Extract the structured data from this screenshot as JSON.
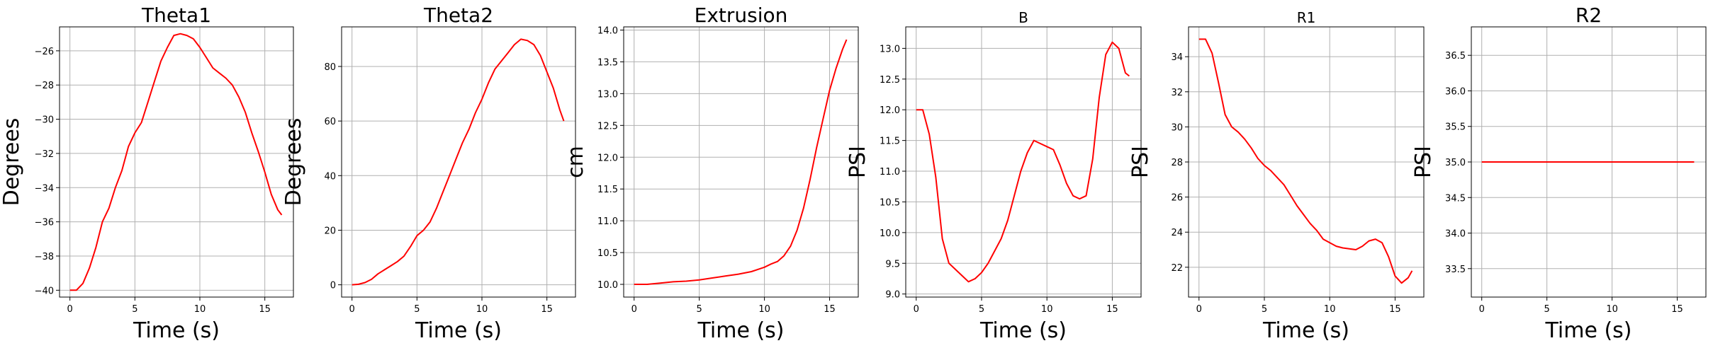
{
  "chart_data": [
    {
      "type": "line",
      "title": "Theta1",
      "xlabel": "Time (s)",
      "ylabel": "Degrees",
      "xlim": [
        -0.8,
        17.2
      ],
      "ylim": [
        -40.4,
        -24.6
      ],
      "xticks": [
        0,
        5,
        10,
        15
      ],
      "yticks": [
        -40,
        -38,
        -36,
        -34,
        -32,
        -30,
        -28,
        -26
      ],
      "grid": true,
      "color": "#ff0000",
      "x": [
        0,
        0.5,
        1,
        1.5,
        2,
        2.5,
        3,
        3.5,
        4,
        4.5,
        5,
        5.5,
        6,
        6.5,
        7,
        7.5,
        8,
        8.5,
        9,
        9.5,
        10,
        10.5,
        11,
        11.5,
        12,
        12.5,
        13,
        13.5,
        14,
        14.5,
        15,
        15.5,
        16,
        16.3
      ],
      "y": [
        -40,
        -40,
        -39.6,
        -38.7,
        -37.5,
        -36,
        -35.2,
        -34,
        -33,
        -31.6,
        -30.8,
        -30.2,
        -29,
        -27.8,
        -26.6,
        -25.8,
        -25.1,
        -25,
        -25.1,
        -25.3,
        -25.8,
        -26.4,
        -27,
        -27.3,
        -27.6,
        -28,
        -28.7,
        -29.6,
        -30.8,
        -31.9,
        -33.1,
        -34.4,
        -35.3,
        -35.6
      ]
    },
    {
      "type": "line",
      "title": "Theta2",
      "xlabel": "Time (s)",
      "ylabel": "Degrees",
      "xlim": [
        -0.8,
        17.2
      ],
      "ylim": [
        -4.5,
        94.5
      ],
      "xticks": [
        0,
        5,
        10,
        15
      ],
      "yticks": [
        0,
        20,
        40,
        60,
        80
      ],
      "grid": true,
      "color": "#ff0000",
      "x": [
        0,
        0.5,
        1,
        1.5,
        2,
        2.5,
        3,
        3.5,
        4,
        4.5,
        5,
        5.5,
        6,
        6.5,
        7,
        7.5,
        8,
        8.5,
        9,
        9.5,
        10,
        10.5,
        11,
        11.5,
        12,
        12.5,
        13,
        13.5,
        14,
        14.5,
        15,
        15.5,
        16,
        16.3
      ],
      "y": [
        0,
        0.2,
        0.8,
        2,
        4,
        5.5,
        7,
        8.5,
        10.5,
        14,
        18,
        20,
        23,
        28,
        34,
        40,
        46,
        52,
        57,
        63,
        68,
        74,
        79,
        82,
        85,
        88,
        90,
        89.5,
        88,
        84,
        78,
        72,
        64,
        60
      ]
    },
    {
      "type": "line",
      "title": "Extrusion",
      "xlabel": "Time (s)",
      "ylabel": "cm",
      "xlim": [
        -0.8,
        17.2
      ],
      "ylim": [
        9.8,
        14.05
      ],
      "xticks": [
        0,
        5,
        10,
        15
      ],
      "yticks": [
        10.0,
        10.5,
        11.0,
        11.5,
        12.0,
        12.5,
        13.0,
        13.5,
        14.0
      ],
      "grid": true,
      "color": "#ff0000",
      "x": [
        0,
        1,
        2,
        3,
        4,
        5,
        6,
        7,
        8,
        9,
        10,
        10.5,
        11,
        11.5,
        12,
        12.5,
        13,
        13.5,
        14,
        14.5,
        15,
        15.5,
        16,
        16.3
      ],
      "y": [
        10,
        10,
        10.02,
        10.04,
        10.05,
        10.07,
        10.1,
        10.13,
        10.16,
        10.2,
        10.27,
        10.32,
        10.36,
        10.45,
        10.6,
        10.85,
        11.2,
        11.65,
        12.15,
        12.6,
        13.05,
        13.4,
        13.7,
        13.85
      ]
    },
    {
      "type": "line",
      "title": "B",
      "xlabel": "Time (s)",
      "ylabel": "PSI",
      "xlim": [
        -0.8,
        17.2
      ],
      "ylim": [
        8.95,
        13.35
      ],
      "xticks": [
        0,
        5,
        10,
        15
      ],
      "yticks": [
        9.0,
        9.5,
        10.0,
        10.5,
        11.0,
        11.5,
        12.0,
        12.5,
        13.0
      ],
      "grid": true,
      "color": "#ff0000",
      "x": [
        0,
        0.5,
        1,
        1.5,
        2,
        2.5,
        3,
        3.5,
        4,
        4.5,
        5,
        5.5,
        6,
        6.5,
        7,
        7.5,
        8,
        8.5,
        9,
        9.5,
        10,
        10.5,
        11,
        11.5,
        12,
        12.5,
        13,
        13.5,
        14,
        14.5,
        15,
        15.5,
        16,
        16.3
      ],
      "y": [
        12,
        12,
        11.6,
        10.9,
        9.9,
        9.5,
        9.4,
        9.3,
        9.2,
        9.25,
        9.35,
        9.5,
        9.7,
        9.9,
        10.2,
        10.6,
        11,
        11.3,
        11.5,
        11.45,
        11.4,
        11.35,
        11.1,
        10.8,
        10.6,
        10.55,
        10.6,
        11.2,
        12.2,
        12.9,
        13.1,
        13,
        12.6,
        12.55
      ]
    },
    {
      "type": "line",
      "title": "R1",
      "xlabel": "Time (s)",
      "ylabel": "PSI",
      "xlim": [
        -0.8,
        17.2
      ],
      "ylim": [
        20.3,
        35.7
      ],
      "xticks": [
        0,
        5,
        10,
        15
      ],
      "yticks": [
        22,
        24,
        26,
        28,
        30,
        32,
        34
      ],
      "grid": true,
      "color": "#ff0000",
      "x": [
        0,
        0.5,
        1,
        1.5,
        2,
        2.5,
        3,
        3.5,
        4,
        4.5,
        5,
        5.5,
        6,
        6.5,
        7,
        7.5,
        8,
        8.5,
        9,
        9.5,
        10,
        10.5,
        11,
        11.5,
        12,
        12.5,
        13,
        13.5,
        14,
        14.5,
        15,
        15.5,
        16,
        16.3
      ],
      "y": [
        35,
        35,
        34.2,
        32.5,
        30.7,
        30,
        29.7,
        29.3,
        28.8,
        28.2,
        27.8,
        27.5,
        27.1,
        26.7,
        26.1,
        25.5,
        25,
        24.5,
        24.1,
        23.6,
        23.4,
        23.2,
        23.1,
        23.05,
        23,
        23.2,
        23.5,
        23.6,
        23.4,
        22.6,
        21.5,
        21.1,
        21.4,
        21.8
      ]
    },
    {
      "type": "line",
      "title": "R2",
      "xlabel": "Time (s)",
      "ylabel": "PSI",
      "xlim": [
        -0.8,
        17.2
      ],
      "ylim": [
        33.1,
        36.9
      ],
      "xticks": [
        0,
        5,
        10,
        15
      ],
      "yticks": [
        33.5,
        34.0,
        34.5,
        35.0,
        35.5,
        36.0,
        36.5
      ],
      "grid": true,
      "color": "#ff0000",
      "x": [
        0,
        16.3
      ],
      "y": [
        35,
        35
      ]
    }
  ]
}
